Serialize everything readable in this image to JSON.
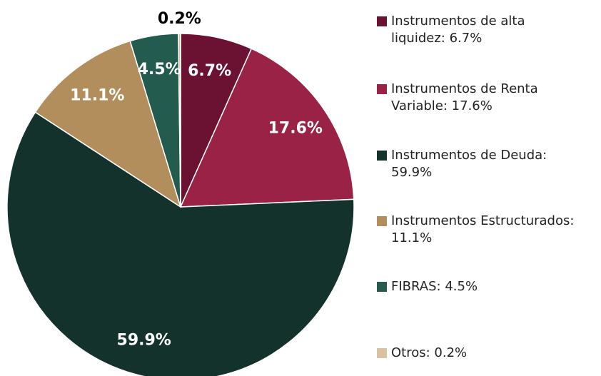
{
  "chart_data": {
    "type": "pie",
    "categories": [
      "Instrumentos de alta liquidez: 6.7%",
      "Instrumentos de Renta Variable: 17.6%",
      "Instrumentos de Deuda: 59.9%",
      "Instrumentos Estructurados: 11.1%",
      "FIBRAS: 4.5%",
      "Otros: 0.2%"
    ],
    "values": [
      6.7,
      17.6,
      59.9,
      11.1,
      4.5,
      0.2
    ],
    "value_labels": [
      "6.7%",
      "17.6%",
      "59.9%",
      "11.1%",
      "4.5%",
      "0.2%"
    ],
    "colors": [
      "#6b1132",
      "#9b2247",
      "#13322b",
      "#b38e5d",
      "#235b4e",
      "#d7c49e"
    ],
    "legend": "right"
  }
}
